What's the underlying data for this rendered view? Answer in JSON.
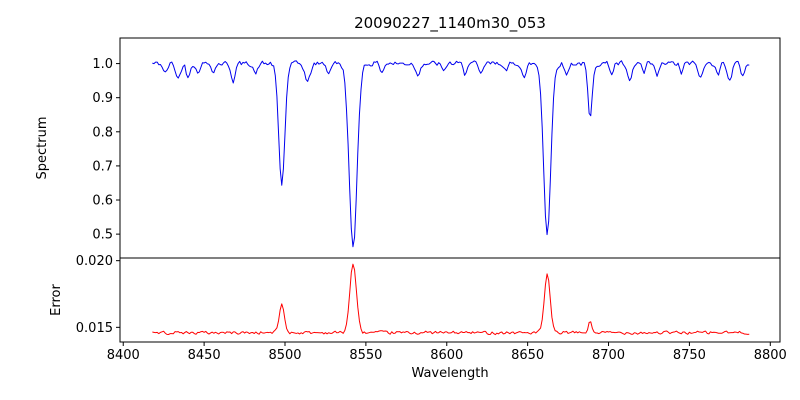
{
  "title": "20090227_1140m30_053",
  "chart_data": {
    "type": "line",
    "title": "20090227_1140m30_053",
    "xlabel": "Wavelength",
    "xlim": [
      8398,
      8806
    ],
    "x_ticks": [
      8400,
      8450,
      8500,
      8550,
      8600,
      8650,
      8700,
      8750,
      8800
    ],
    "x_tick_labels": [
      "8400",
      "8450",
      "8500",
      "8550",
      "8600",
      "8650",
      "8700",
      "8750",
      "8800"
    ],
    "x_start": 8418,
    "x_end": 8787,
    "x_step": 1.0,
    "noise_seed": 42,
    "legend": "none",
    "grid": false,
    "panels": [
      {
        "name": "spectrum",
        "ylabel": "Spectrum",
        "color": "#0000ee",
        "ylim": [
          0.43,
          1.075
        ],
        "y_ticks": [
          0.5,
          0.6,
          0.7,
          0.8,
          0.9,
          1.0
        ],
        "y_tick_labels": [
          "0.5",
          "0.6",
          "0.7",
          "0.8",
          "0.9",
          "1.0"
        ],
        "baseline": 1.0,
        "noise_amplitude": 0.0095,
        "features": [
          {
            "center": 8498.0,
            "depth": 0.355,
            "sigma": 1.9
          },
          {
            "center": 8542.1,
            "depth": 0.545,
            "sigma": 2.4
          },
          {
            "center": 8662.1,
            "depth": 0.5,
            "sigma": 2.2
          },
          {
            "center": 8688.6,
            "depth": 0.165,
            "sigma": 1.3
          },
          {
            "center": 8426,
            "depth": 0.03,
            "sigma": 1.2
          },
          {
            "center": 8434,
            "depth": 0.045,
            "sigma": 1.4
          },
          {
            "center": 8440,
            "depth": 0.04,
            "sigma": 1.1
          },
          {
            "center": 8446,
            "depth": 0.03,
            "sigma": 1.0
          },
          {
            "center": 8456,
            "depth": 0.025,
            "sigma": 1.0
          },
          {
            "center": 8468,
            "depth": 0.05,
            "sigma": 1.3
          },
          {
            "center": 8482,
            "depth": 0.032,
            "sigma": 1.1
          },
          {
            "center": 8514,
            "depth": 0.055,
            "sigma": 1.6
          },
          {
            "center": 8527,
            "depth": 0.03,
            "sigma": 1.0
          },
          {
            "center": 8560,
            "depth": 0.025,
            "sigma": 1.0
          },
          {
            "center": 8582,
            "depth": 0.035,
            "sigma": 1.2
          },
          {
            "center": 8598,
            "depth": 0.028,
            "sigma": 1.0
          },
          {
            "center": 8611,
            "depth": 0.03,
            "sigma": 1.0
          },
          {
            "center": 8621,
            "depth": 0.035,
            "sigma": 1.2
          },
          {
            "center": 8637,
            "depth": 0.025,
            "sigma": 1.0
          },
          {
            "center": 8648,
            "depth": 0.042,
            "sigma": 1.3
          },
          {
            "center": 8674,
            "depth": 0.035,
            "sigma": 1.1
          },
          {
            "center": 8702,
            "depth": 0.03,
            "sigma": 1.0
          },
          {
            "center": 8713,
            "depth": 0.055,
            "sigma": 1.5
          },
          {
            "center": 8722,
            "depth": 0.03,
            "sigma": 1.0
          },
          {
            "center": 8730,
            "depth": 0.038,
            "sigma": 1.2
          },
          {
            "center": 8745,
            "depth": 0.028,
            "sigma": 1.0
          },
          {
            "center": 8757,
            "depth": 0.045,
            "sigma": 1.3
          },
          {
            "center": 8768,
            "depth": 0.03,
            "sigma": 1.0
          },
          {
            "center": 8775,
            "depth": 0.05,
            "sigma": 1.3
          },
          {
            "center": 8783,
            "depth": 0.035,
            "sigma": 1.1
          }
        ]
      },
      {
        "name": "error",
        "ylabel": "Error",
        "color": "#ff0000",
        "ylim": [
          0.0139,
          0.0202
        ],
        "y_ticks": [
          0.015,
          0.02
        ],
        "y_tick_labels": [
          "0.015",
          "0.020"
        ],
        "baseline": 0.0146,
        "noise_amplitude": 0.00015,
        "features": [
          {
            "center": 8498.0,
            "depth": -0.0021,
            "sigma": 1.6
          },
          {
            "center": 8542.1,
            "depth": -0.0052,
            "sigma": 2.0
          },
          {
            "center": 8662.1,
            "depth": -0.0043,
            "sigma": 1.8
          },
          {
            "center": 8688.6,
            "depth": -0.0008,
            "sigma": 1.1
          }
        ]
      }
    ]
  }
}
